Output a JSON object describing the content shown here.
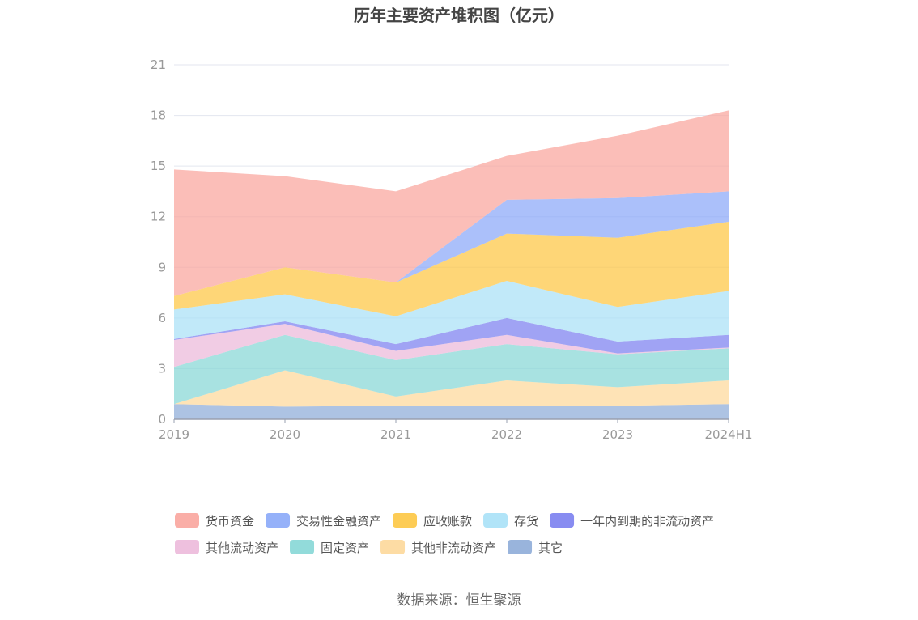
{
  "chart_data": {
    "type": "area",
    "stacked": true,
    "title": "历年主要资产堆积图（亿元）",
    "x": [
      "2019",
      "2020",
      "2021",
      "2022",
      "2023",
      "2024H1"
    ],
    "yticks": [
      "0",
      "3",
      "6",
      "9",
      "12",
      "15",
      "18",
      "21"
    ],
    "ylim": [
      0,
      21
    ],
    "legend_position": "bottom",
    "series": [
      {
        "name": "其它",
        "color": "#8eacd8",
        "values": [
          0.9,
          0.75,
          0.8,
          0.8,
          0.8,
          0.9
        ]
      },
      {
        "name": "其他非流动资产",
        "color": "#fdd89a",
        "values": [
          0.0,
          2.15,
          0.55,
          1.5,
          1.1,
          1.4
        ]
      },
      {
        "name": "固定资产",
        "color": "#86d7d6",
        "values": [
          2.2,
          2.1,
          2.15,
          2.15,
          1.95,
          1.9
        ]
      },
      {
        "name": "其他流动资产",
        "color": "#ecb9da",
        "values": [
          1.6,
          0.65,
          0.55,
          0.55,
          0.05,
          0.05
        ]
      },
      {
        "name": "一年内到期的非流动资产",
        "color": "#7b7ff0",
        "values": [
          0.05,
          0.15,
          0.4,
          1.0,
          0.7,
          0.75
        ]
      },
      {
        "name": "存货",
        "color": "#a9e1f7",
        "values": [
          1.75,
          1.6,
          1.65,
          2.2,
          2.05,
          2.6
        ]
      },
      {
        "name": "应收账款",
        "color": "#fdc643",
        "values": [
          0.8,
          1.6,
          2.0,
          2.8,
          4.1,
          4.1
        ]
      },
      {
        "name": "交易性金融资产",
        "color": "#8aa8f8",
        "values": [
          0.0,
          0.0,
          0.0,
          2.0,
          2.35,
          1.8
        ]
      },
      {
        "name": "货币资金",
        "color": "#f9a59d",
        "values": [
          7.5,
          5.4,
          5.4,
          2.6,
          3.7,
          4.8
        ]
      }
    ],
    "legend_order": [
      "货币资金",
      "交易性金融资产",
      "应收账款",
      "存货",
      "一年内到期的非流动资产",
      "其他流动资产",
      "固定资产",
      "其他非流动资产",
      "其它"
    ]
  },
  "source": "数据来源：恒生聚源"
}
